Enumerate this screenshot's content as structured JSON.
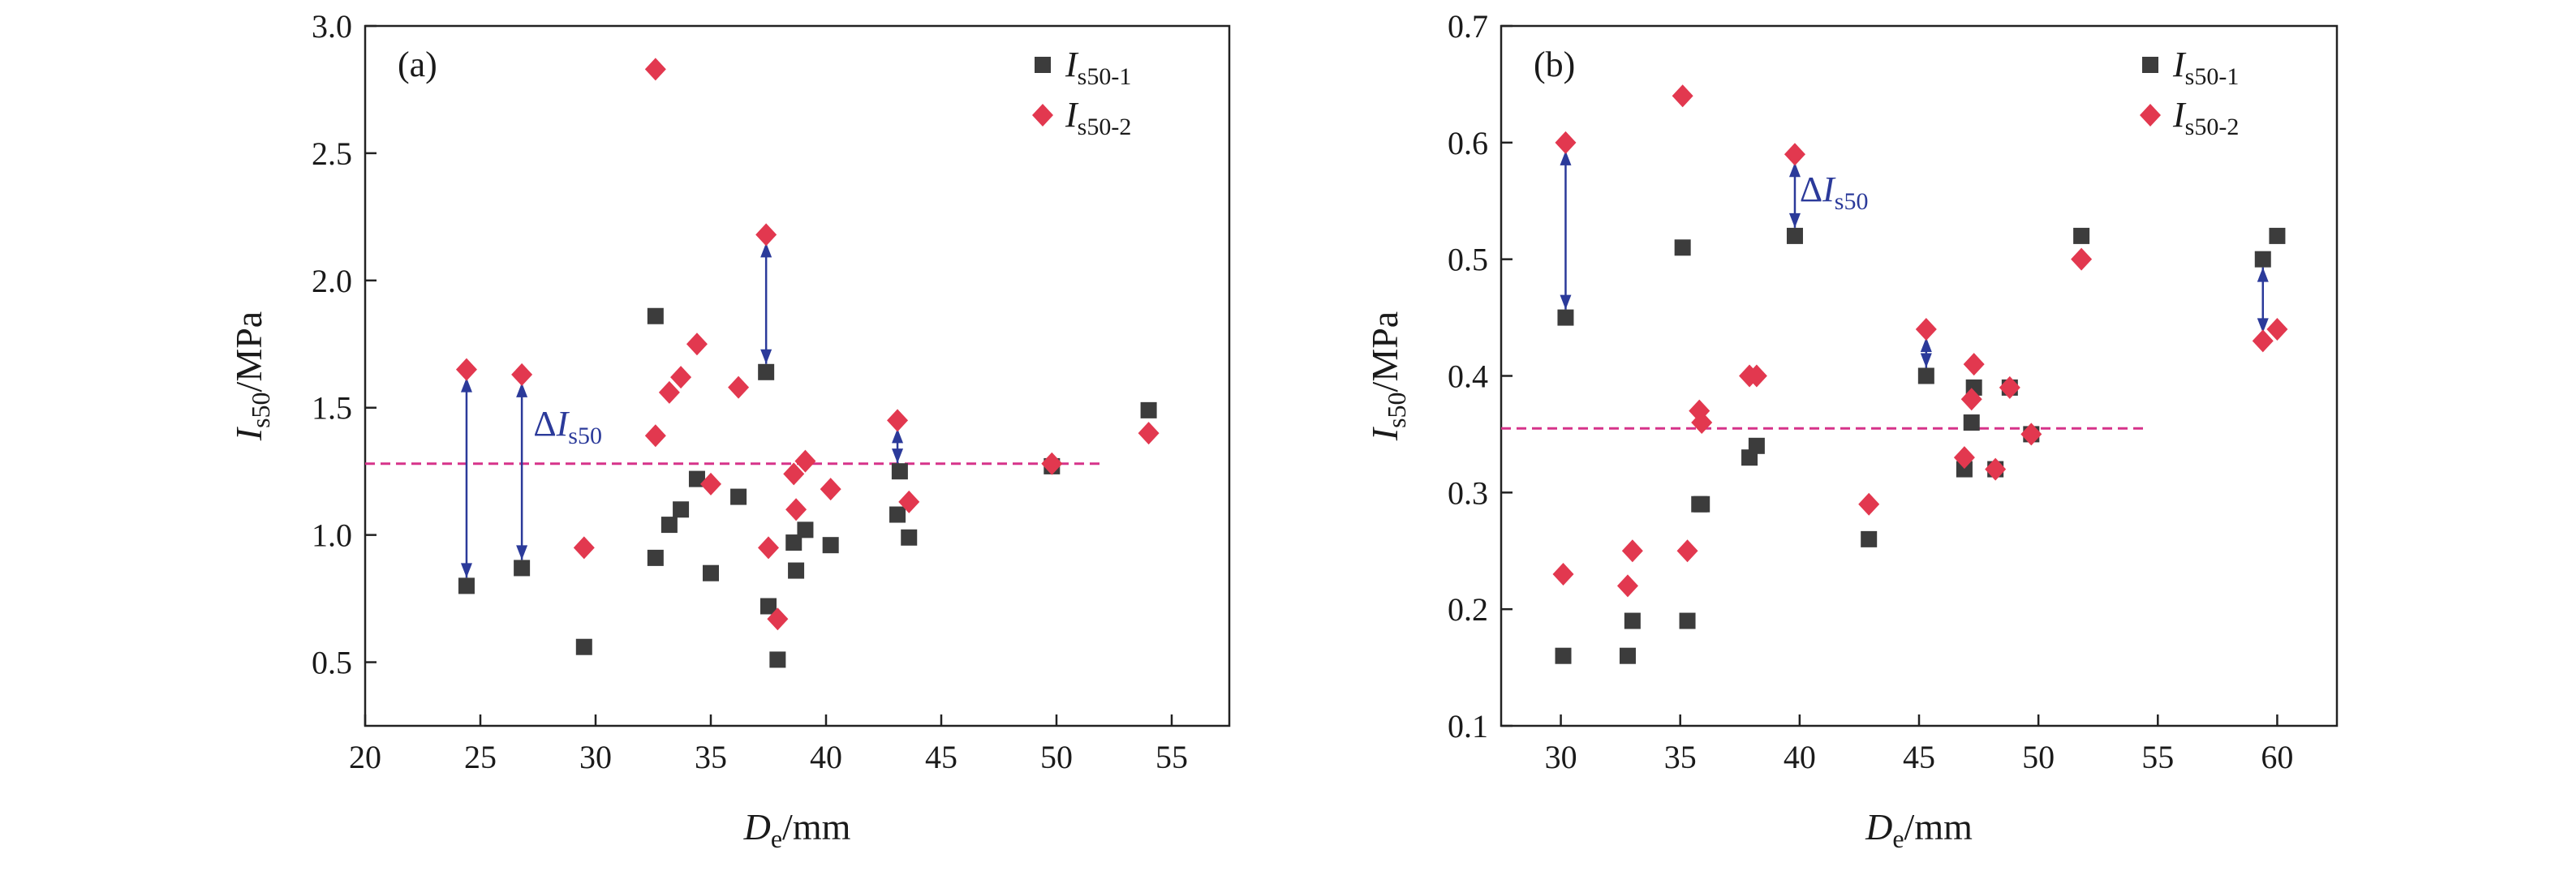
{
  "colors": {
    "series1": "#3c3c3c",
    "series2": "#e2384f",
    "arrow": "#2b3a9a",
    "refline": "#d6338a",
    "axis": "#222222"
  },
  "chart_data": [
    {
      "type": "scatter",
      "panel_label": "(a)",
      "xlabel": {
        "main": "D",
        "sub": "e",
        "suffix": "/mm"
      },
      "ylabel": {
        "main": "I",
        "sub": "s50",
        "suffix": "/MPa"
      },
      "xlim": [
        20,
        57.5
      ],
      "ylim": [
        0.25,
        3.0
      ],
      "xticks": [
        20,
        25,
        30,
        35,
        40,
        45,
        50,
        55
      ],
      "xtick_labels": [
        "20",
        "25",
        "30",
        "35",
        "40",
        "45",
        "50",
        "55"
      ],
      "yticks": [
        0.5,
        1.0,
        1.5,
        2.0,
        2.5,
        3.0
      ],
      "ytick_labels": [
        "0.5",
        "1.0",
        "1.5",
        "2.0",
        "2.5",
        "3.0"
      ],
      "legend_position": "top-right",
      "series": [
        {
          "name": {
            "main": "I",
            "sub": "s50-1"
          },
          "marker": "square",
          "x": [
            24.4,
            26.8,
            29.5,
            32.6,
            32.6,
            33.2,
            33.7,
            34.4,
            35.0,
            36.2,
            37.4,
            37.5,
            37.9,
            38.6,
            38.7,
            39.1,
            40.2,
            43.1,
            43.2,
            43.6,
            49.8,
            54.0
          ],
          "y": [
            0.8,
            0.87,
            0.56,
            1.86,
            0.91,
            1.04,
            1.1,
            1.22,
            0.85,
            1.15,
            1.64,
            0.72,
            0.51,
            0.97,
            0.86,
            1.02,
            0.96,
            1.08,
            1.25,
            0.99,
            1.27,
            1.49
          ]
        },
        {
          "name": {
            "main": "I",
            "sub": "s50-2"
          },
          "marker": "diamond",
          "x": [
            24.4,
            26.8,
            29.5,
            32.6,
            32.6,
            33.2,
            33.7,
            34.4,
            35.0,
            36.2,
            37.4,
            37.5,
            37.9,
            38.6,
            38.7,
            39.1,
            40.2,
            43.1,
            43.6,
            49.8,
            54.0
          ],
          "y": [
            1.65,
            1.63,
            0.95,
            2.83,
            1.39,
            1.56,
            1.62,
            1.75,
            1.2,
            1.58,
            2.18,
            0.95,
            0.67,
            1.24,
            1.1,
            1.29,
            1.18,
            1.45,
            1.13,
            1.28,
            1.4
          ]
        }
      ],
      "reference_line": {
        "y": 1.28,
        "x_range": [
          20,
          52
        ]
      },
      "arrows": [
        {
          "x": 24.4,
          "y_from": 0.8,
          "y_to": 1.65
        },
        {
          "x": 26.8,
          "y_from": 0.87,
          "y_to": 1.63
        },
        {
          "x": 37.4,
          "y_from": 1.64,
          "y_to": 2.18
        },
        {
          "x": 43.1,
          "y_from": 1.25,
          "y_to": 1.45
        }
      ],
      "annotation": {
        "prefix": "Δ",
        "main": "I",
        "sub": "s50",
        "x": 27.3,
        "y": 1.39
      }
    },
    {
      "type": "scatter",
      "panel_label": "(b)",
      "xlabel": {
        "main": "D",
        "sub": "e",
        "suffix": "/mm"
      },
      "ylabel": {
        "main": "I",
        "sub": "s50",
        "suffix": "/MPa"
      },
      "xlim": [
        27.5,
        62.5
      ],
      "ylim": [
        0.1,
        0.7
      ],
      "xticks": [
        30,
        35,
        40,
        45,
        50,
        55,
        60
      ],
      "xtick_labels": [
        "30",
        "35",
        "40",
        "45",
        "50",
        "55",
        "60"
      ],
      "yticks": [
        0.1,
        0.2,
        0.3,
        0.4,
        0.5,
        0.6,
        0.7
      ],
      "ytick_labels": [
        "0.1",
        "0.2",
        "0.3",
        "0.4",
        "0.5",
        "0.6",
        "0.7"
      ],
      "legend_position": "top-right",
      "series": [
        {
          "name": {
            "main": "I",
            "sub": "s50-1"
          },
          "marker": "square",
          "x": [
            30.1,
            30.2,
            32.8,
            33.0,
            35.1,
            35.3,
            35.8,
            35.9,
            37.9,
            38.2,
            39.8,
            42.9,
            45.3,
            46.9,
            47.2,
            47.3,
            48.2,
            48.8,
            49.7,
            51.8,
            59.4,
            60.0
          ],
          "y": [
            0.16,
            0.45,
            0.16,
            0.19,
            0.51,
            0.19,
            0.29,
            0.29,
            0.33,
            0.34,
            0.52,
            0.26,
            0.4,
            0.32,
            0.36,
            0.39,
            0.32,
            0.39,
            0.35,
            0.52,
            0.5,
            0.52
          ],
          "y_screen_note": "unused"
        },
        {
          "name": {
            "main": "I",
            "sub": "s50-2"
          },
          "marker": "diamond",
          "x": [
            30.1,
            30.2,
            32.8,
            33.0,
            35.1,
            35.3,
            35.8,
            35.9,
            37.9,
            38.2,
            39.8,
            42.9,
            45.3,
            46.9,
            47.2,
            47.3,
            48.2,
            48.8,
            49.7,
            51.8,
            59.4,
            60.0
          ],
          "y": [
            0.23,
            0.6,
            0.22,
            0.25,
            0.64,
            0.25,
            0.37,
            0.36,
            0.4,
            0.4,
            0.59,
            0.29,
            0.44,
            0.33,
            0.38,
            0.41,
            0.32,
            0.39,
            0.35,
            0.5,
            0.43,
            0.44
          ]
        }
      ],
      "reference_line": {
        "y": 0.355,
        "x_range": [
          27.5,
          54.5
        ]
      },
      "arrows": [
        {
          "x": 30.2,
          "y_from": 0.45,
          "y_to": 0.6
        },
        {
          "x": 39.8,
          "y_from": 0.52,
          "y_to": 0.59
        },
        {
          "x": 45.3,
          "y_from": 0.4,
          "y_to": 0.44
        },
        {
          "x": 59.4,
          "y_from": 0.43,
          "y_to": 0.5
        }
      ],
      "annotation": {
        "prefix": "Δ",
        "main": "I",
        "sub": "s50",
        "x": 40.0,
        "y": 0.55
      }
    }
  ]
}
